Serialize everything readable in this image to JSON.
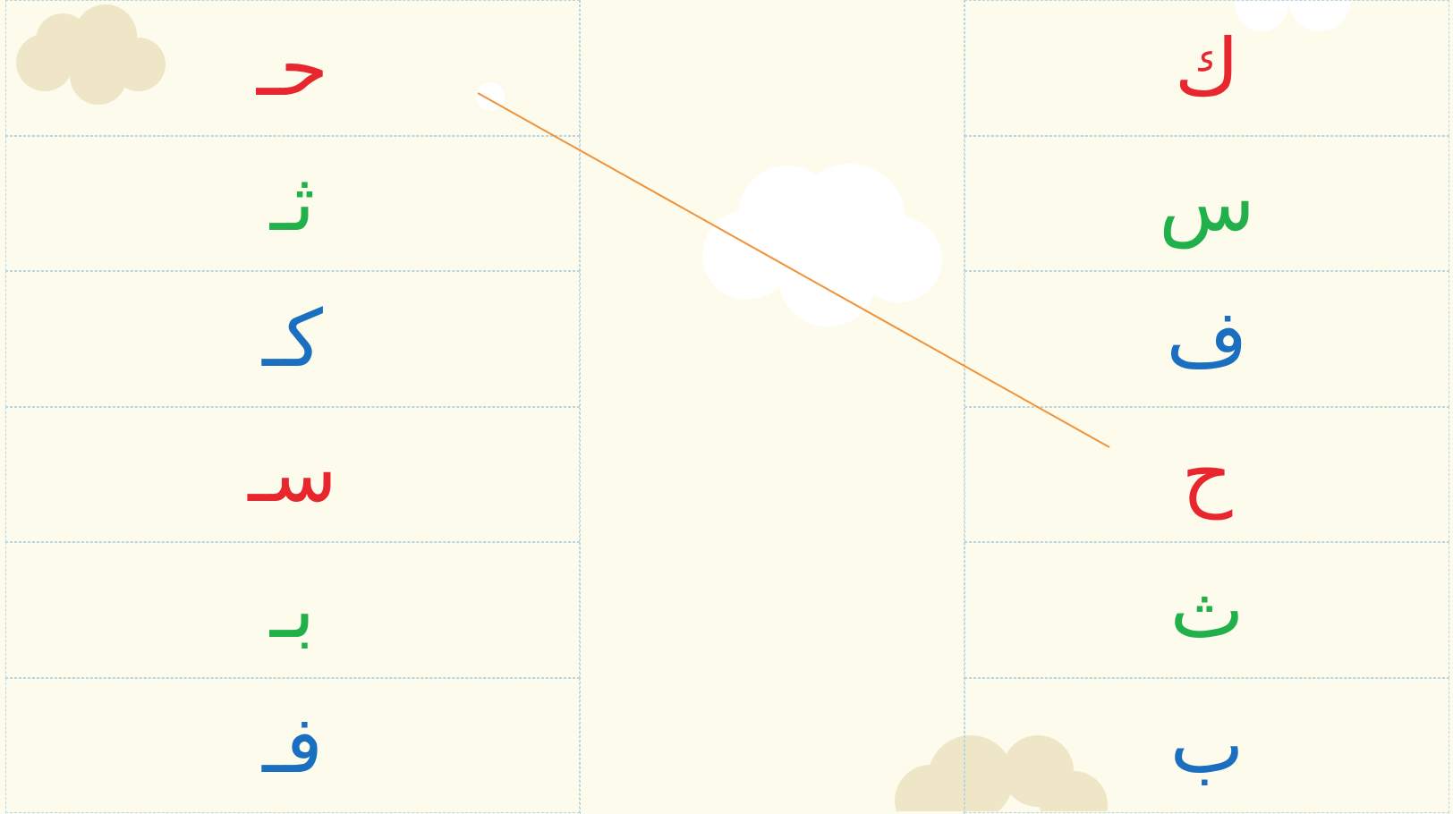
{
  "left": [
    {
      "letter": "حـ",
      "color": "#e8262e"
    },
    {
      "letter": "ثـ",
      "color": "#22b04b"
    },
    {
      "letter": "كـ",
      "color": "#1a6fc0"
    },
    {
      "letter": "سـ",
      "color": "#e8262e"
    },
    {
      "letter": "بـ",
      "color": "#22b04b"
    },
    {
      "letter": "فـ",
      "color": "#1a6fc0"
    }
  ],
  "right": [
    {
      "letter": "ك",
      "color": "#e8262e"
    },
    {
      "letter": "س",
      "color": "#22b04b"
    },
    {
      "letter": "ف",
      "color": "#1a6fc0"
    },
    {
      "letter": "ح",
      "color": "#e8262e"
    },
    {
      "letter": "ث",
      "color": "#22b04b"
    },
    {
      "letter": "ب",
      "color": "#1a6fc0"
    }
  ]
}
